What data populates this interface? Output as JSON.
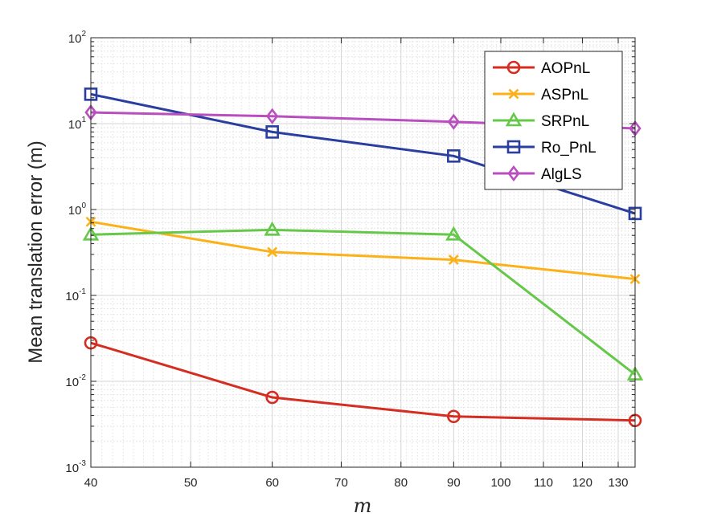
{
  "chart_data": {
    "type": "line",
    "title": "",
    "xlabel": "m",
    "ylabel": "Mean translation error (m)",
    "xscale": "log",
    "yscale": "log",
    "xlim": [
      40,
      135
    ],
    "ylim": [
      0.001,
      100
    ],
    "grid": true,
    "minor_grid": true,
    "legend_location": "top-right",
    "x": [
      40,
      60,
      90,
      135
    ],
    "xticks": [
      40,
      50,
      60,
      70,
      80,
      90,
      100,
      110,
      120,
      130
    ],
    "xtick_labels": [
      "40",
      "50",
      "60",
      "70",
      "80",
      "90",
      "100",
      "110",
      "120",
      "130"
    ],
    "yticks": [
      {
        "base": "10",
        "exp": "-3"
      },
      {
        "base": "10",
        "exp": "-2"
      },
      {
        "base": "10",
        "exp": "-1"
      },
      {
        "base": "10",
        "exp": "0"
      },
      {
        "base": "10",
        "exp": "1"
      },
      {
        "base": "10",
        "exp": "2"
      }
    ],
    "series": [
      {
        "name": "AOPnL",
        "color": "#d62d22",
        "marker": "circle",
        "values": [
          0.028,
          0.0065,
          0.0039,
          0.0035
        ]
      },
      {
        "name": "ASPnL",
        "color": "#fbb117",
        "marker": "x",
        "values": [
          0.72,
          0.32,
          0.26,
          0.155
        ]
      },
      {
        "name": "SRPnL",
        "color": "#65c849",
        "marker": "triangle",
        "values": [
          0.51,
          0.58,
          0.51,
          0.012
        ]
      },
      {
        "name": "Ro_PnL",
        "color": "#2a3ea0",
        "marker": "square",
        "values": [
          22,
          8,
          4.2,
          0.9
        ]
      },
      {
        "name": "AlgLS",
        "color": "#b94fbf",
        "marker": "diamond",
        "values": [
          13.5,
          12.2,
          10.5,
          8.8
        ]
      }
    ]
  }
}
